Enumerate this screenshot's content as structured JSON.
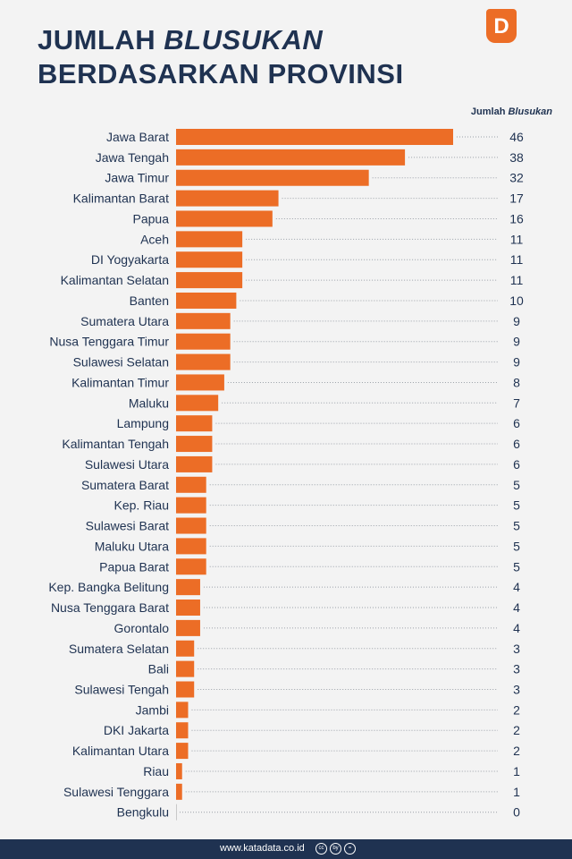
{
  "header": {
    "title_line1_prefix": "JUMLAH ",
    "title_line1_italic": "BLUSUKAN",
    "title_line2": "BERDASARKAN PROVINSI",
    "logo_letter": "D",
    "column_prefix": "Jumlah ",
    "column_italic": "Blusukan"
  },
  "footer": {
    "url": "www.katadata.co.id",
    "license_icons": [
      "cc",
      "by",
      "="
    ]
  },
  "colors": {
    "bar": "#ec6d26",
    "title": "#1f3251",
    "background": "#f3f3f3",
    "footer": "#1f3251"
  },
  "chart_data": {
    "type": "bar",
    "orientation": "horizontal",
    "categories": [
      "Jawa Barat",
      "Jawa Tengah",
      "Jawa Timur",
      "Kalimantan Barat",
      "Papua",
      "Aceh",
      "DI Yogyakarta",
      "Kalimantan Selatan",
      "Banten",
      "Sumatera Utara",
      "Nusa Tenggara Timur",
      "Sulawesi Selatan",
      "Kalimantan Timur",
      "Maluku",
      "Lampung",
      "Kalimantan Tengah",
      "Sulawesi Utara",
      "Sumatera Barat",
      "Kep. Riau",
      "Sulawesi Barat",
      "Maluku Utara",
      "Papua Barat",
      "Kep. Bangka Belitung",
      "Nusa Tenggara Barat",
      "Gorontalo",
      "Sumatera Selatan",
      "Bali",
      "Sulawesi Tengah",
      "Jambi",
      "DKI Jakarta",
      "Kalimantan Utara",
      "Riau",
      "Sulawesi Tenggara",
      "Bengkulu"
    ],
    "values": [
      46,
      38,
      32,
      17,
      16,
      11,
      11,
      11,
      10,
      9,
      9,
      9,
      8,
      7,
      6,
      6,
      6,
      5,
      5,
      5,
      5,
      5,
      4,
      4,
      4,
      3,
      3,
      3,
      2,
      2,
      2,
      1,
      1,
      0
    ],
    "xlim": [
      0,
      46
    ],
    "grid": false
  }
}
